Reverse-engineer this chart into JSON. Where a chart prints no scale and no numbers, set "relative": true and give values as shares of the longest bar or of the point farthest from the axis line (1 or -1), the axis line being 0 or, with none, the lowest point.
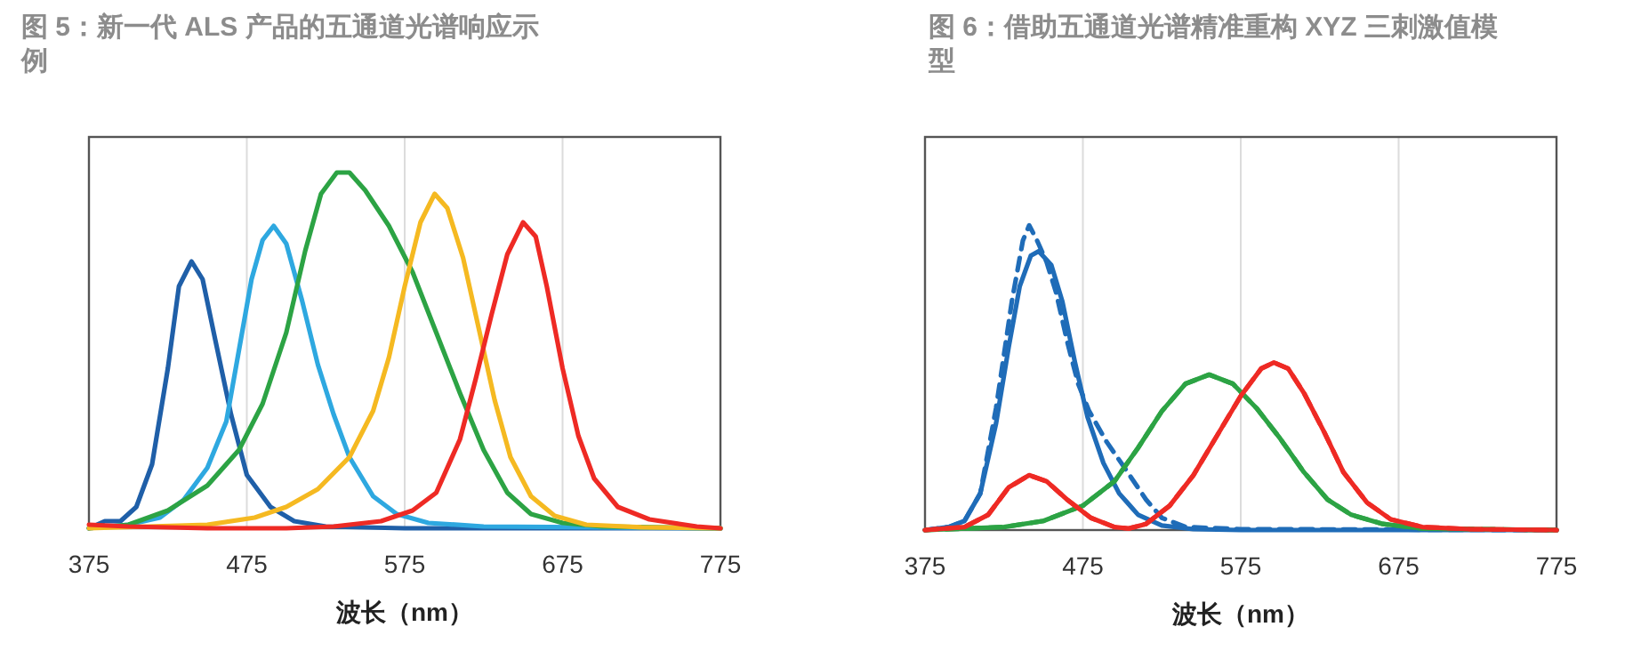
{
  "chart_data": [
    {
      "type": "line",
      "title": "图 5：新一代 ALS 产品的五通道光谱响应示例",
      "xlabel": "波长（nm）",
      "relative": true,
      "xlim": [
        375,
        775
      ],
      "xticks": [
        375,
        475,
        575,
        675,
        775
      ],
      "grid": "x",
      "line_style": "solid",
      "series": [
        {
          "color": "#1f5fa8",
          "x": [
            375,
            385,
            395,
            405,
            415,
            425,
            432,
            440,
            447,
            455,
            465,
            475,
            490,
            505,
            525,
            575,
            675,
            775
          ],
          "values": [
            0,
            0.02,
            0.02,
            0.06,
            0.18,
            0.45,
            0.68,
            0.75,
            0.7,
            0.53,
            0.32,
            0.15,
            0.06,
            0.02,
            0.005,
            0,
            0,
            0
          ]
        },
        {
          "color": "#2ea8e0",
          "x": [
            375,
            400,
            420,
            435,
            450,
            462,
            470,
            478,
            485,
            492,
            500,
            510,
            520,
            530,
            540,
            555,
            570,
            590,
            625,
            775
          ],
          "values": [
            0,
            0.01,
            0.03,
            0.08,
            0.17,
            0.3,
            0.5,
            0.7,
            0.81,
            0.85,
            0.8,
            0.64,
            0.46,
            0.32,
            0.2,
            0.09,
            0.04,
            0.015,
            0.005,
            0
          ]
        },
        {
          "color": "#2ca344",
          "x": [
            375,
            400,
            425,
            450,
            470,
            485,
            500,
            512,
            522,
            532,
            540,
            550,
            565,
            580,
            595,
            610,
            625,
            640,
            655,
            675,
            700,
            775
          ],
          "values": [
            0,
            0.01,
            0.05,
            0.12,
            0.22,
            0.35,
            0.55,
            0.78,
            0.94,
            1,
            1,
            0.95,
            0.85,
            0.72,
            0.55,
            0.38,
            0.22,
            0.1,
            0.04,
            0.015,
            0.005,
            0
          ]
        },
        {
          "color": "#f5b921",
          "x": [
            375,
            450,
            480,
            500,
            520,
            540,
            555,
            565,
            575,
            585,
            594,
            602,
            612,
            622,
            632,
            642,
            655,
            670,
            690,
            725,
            775
          ],
          "values": [
            0,
            0.01,
            0.03,
            0.06,
            0.11,
            0.2,
            0.33,
            0.48,
            0.68,
            0.86,
            0.94,
            0.9,
            0.76,
            0.56,
            0.36,
            0.2,
            0.09,
            0.035,
            0.01,
            0.003,
            0
          ]
        },
        {
          "color": "#ee2a24",
          "x": [
            375,
            400,
            450,
            500,
            530,
            560,
            580,
            595,
            610,
            620,
            630,
            640,
            650,
            658,
            665,
            675,
            685,
            695,
            710,
            730,
            760,
            775
          ],
          "values": [
            0.01,
            0.005,
            0,
            0,
            0.005,
            0.02,
            0.05,
            0.1,
            0.25,
            0.42,
            0.6,
            0.77,
            0.86,
            0.82,
            0.68,
            0.45,
            0.26,
            0.14,
            0.06,
            0.025,
            0.005,
            0
          ]
        }
      ]
    },
    {
      "type": "line",
      "title": "图 6：借助五通道光谱精准重构 XYZ 三刺激值模型",
      "xlabel": "波长（nm）",
      "relative": true,
      "xlim": [
        375,
        775
      ],
      "xticks": [
        375,
        475,
        575,
        675,
        775
      ],
      "grid": "x",
      "series": [
        {
          "color": "#1f6cb8",
          "line_style": "solid",
          "x": [
            375,
            390,
            400,
            410,
            420,
            428,
            435,
            442,
            447,
            455,
            462,
            470,
            478,
            488,
            498,
            510,
            525,
            545,
            575,
            775
          ],
          "values": [
            0,
            0.01,
            0.03,
            0.12,
            0.35,
            0.6,
            0.8,
            0.9,
            0.915,
            0.87,
            0.75,
            0.55,
            0.37,
            0.22,
            0.12,
            0.05,
            0.015,
            0.003,
            0,
            0
          ]
        },
        {
          "color": "#1f6cb8",
          "line_style": "dashed",
          "x": [
            375,
            390,
            400,
            410,
            420,
            430,
            437,
            441,
            446,
            452,
            458,
            465,
            472,
            479,
            490,
            502,
            515,
            525,
            540,
            575,
            775
          ],
          "values": [
            0,
            0.01,
            0.03,
            0.12,
            0.4,
            0.75,
            0.95,
            1,
            0.95,
            0.88,
            0.78,
            0.62,
            0.48,
            0.39,
            0.29,
            0.2,
            0.1,
            0.04,
            0.01,
            0.003,
            0
          ]
        },
        {
          "color": "#2ca344",
          "line_style": "solid",
          "x": [
            375,
            425,
            450,
            475,
            495,
            510,
            525,
            540,
            555,
            570,
            585,
            600,
            615,
            630,
            645,
            665,
            690,
            775
          ],
          "values": [
            0,
            0.01,
            0.03,
            0.08,
            0.16,
            0.27,
            0.39,
            0.48,
            0.51,
            0.48,
            0.4,
            0.3,
            0.19,
            0.1,
            0.05,
            0.02,
            0.005,
            0
          ]
        },
        {
          "color": "#2ca344",
          "line_style": "dashed",
          "x": [
            375,
            425,
            450,
            475,
            495,
            510,
            525,
            540,
            555,
            570,
            585,
            600,
            615,
            630,
            645,
            665,
            690,
            775
          ],
          "values": [
            0,
            0.01,
            0.03,
            0.08,
            0.16,
            0.27,
            0.39,
            0.48,
            0.51,
            0.48,
            0.4,
            0.3,
            0.19,
            0.1,
            0.05,
            0.02,
            0.005,
            0
          ]
        },
        {
          "color": "#ee2a24",
          "line_style": "solid",
          "x": [
            375,
            400,
            415,
            428,
            441,
            452,
            465,
            480,
            495,
            504,
            515,
            530,
            545,
            560,
            575,
            588,
            596,
            605,
            615,
            628,
            640,
            655,
            670,
            690,
            720,
            775
          ],
          "values": [
            0,
            0.01,
            0.05,
            0.14,
            0.18,
            0.16,
            0.1,
            0.04,
            0.01,
            0.005,
            0.02,
            0.08,
            0.18,
            0.31,
            0.44,
            0.53,
            0.55,
            0.53,
            0.45,
            0.32,
            0.19,
            0.09,
            0.035,
            0.01,
            0.003,
            0
          ]
        },
        {
          "color": "#ee2a24",
          "line_style": "dashed",
          "x": [
            375,
            400,
            415,
            428,
            441,
            452,
            465,
            480,
            495,
            504,
            515,
            530,
            545,
            560,
            575,
            588,
            596,
            605,
            615,
            628,
            640,
            655,
            670,
            690,
            720,
            775
          ],
          "values": [
            0,
            0.01,
            0.05,
            0.14,
            0.18,
            0.16,
            0.1,
            0.04,
            0.01,
            0.005,
            0.02,
            0.08,
            0.18,
            0.31,
            0.44,
            0.53,
            0.55,
            0.53,
            0.45,
            0.32,
            0.19,
            0.09,
            0.035,
            0.01,
            0.003,
            0
          ]
        }
      ]
    }
  ]
}
